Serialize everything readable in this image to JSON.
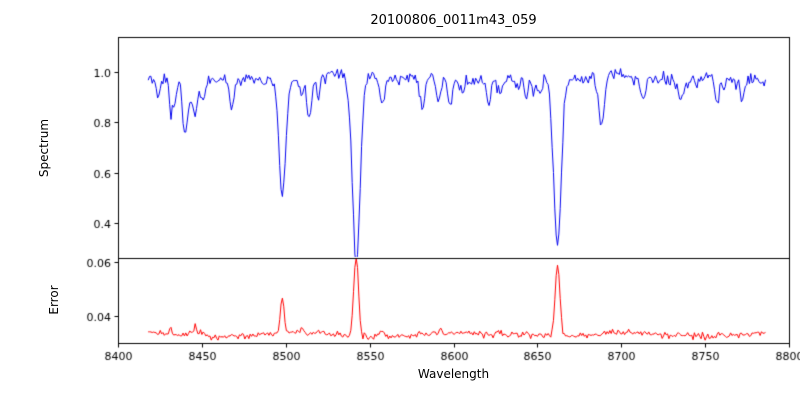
{
  "title": "20100806_0011m43_059",
  "axes": {
    "xlabel": "Wavelength",
    "xlim": [
      8400,
      8800
    ],
    "xticks": [
      8400,
      8450,
      8500,
      8550,
      8600,
      8650,
      8700,
      8750,
      8800
    ]
  },
  "chart_data": [
    {
      "name": "spectrum",
      "type": "line",
      "color": "#0000ee",
      "ylabel": "Spectrum",
      "ylim": [
        0.26,
        1.14
      ],
      "yticks": [
        "0.4",
        "0.6",
        "0.8",
        "1.0"
      ],
      "x_start": 8418,
      "x_end": 8786,
      "continuum": 0.975,
      "noise_sigma": 0.012,
      "weak_line_count": 26,
      "absorption_lines": [
        {
          "center": 8424,
          "depth": 0.08,
          "sigma": 1.2
        },
        {
          "center": 8433,
          "depth": 0.12,
          "sigma": 1.3
        },
        {
          "center": 8440,
          "depth": 0.21,
          "sigma": 1.4
        },
        {
          "center": 8468,
          "depth": 0.13,
          "sigma": 1.3
        },
        {
          "center": 8498,
          "depth": 0.47,
          "sigma": 1.9
        },
        {
          "center": 8514,
          "depth": 0.16,
          "sigma": 1.4
        },
        {
          "center": 8542,
          "depth": 0.7,
          "sigma": 2.3
        },
        {
          "center": 8582,
          "depth": 0.11,
          "sigma": 1.3
        },
        {
          "center": 8598,
          "depth": 0.1,
          "sigma": 1.2
        },
        {
          "center": 8621,
          "depth": 0.09,
          "sigma": 1.2
        },
        {
          "center": 8662,
          "depth": 0.67,
          "sigma": 2.2
        },
        {
          "center": 8688,
          "depth": 0.2,
          "sigma": 1.5
        },
        {
          "center": 8713,
          "depth": 0.09,
          "sigma": 1.2
        },
        {
          "center": 8736,
          "depth": 0.07,
          "sigma": 1.1
        },
        {
          "center": 8757,
          "depth": 0.1,
          "sigma": 1.2
        },
        {
          "center": 8772,
          "depth": 0.09,
          "sigma": 1.1
        }
      ]
    },
    {
      "name": "error",
      "type": "line",
      "color": "#ff0000",
      "ylabel": "Error",
      "ylim": [
        0.03,
        0.0615
      ],
      "yticks": [
        "0.04",
        "0.06"
      ],
      "baseline": 0.033,
      "noise_sigma": 0.0006,
      "weak_spike_scale": 0.02,
      "spikes": [
        {
          "center": 8498,
          "height": 0.014,
          "sigma": 1.1
        },
        {
          "center": 8542,
          "height": 0.0285,
          "sigma": 1.4
        },
        {
          "center": 8662,
          "height": 0.027,
          "sigma": 1.4
        }
      ]
    }
  ]
}
